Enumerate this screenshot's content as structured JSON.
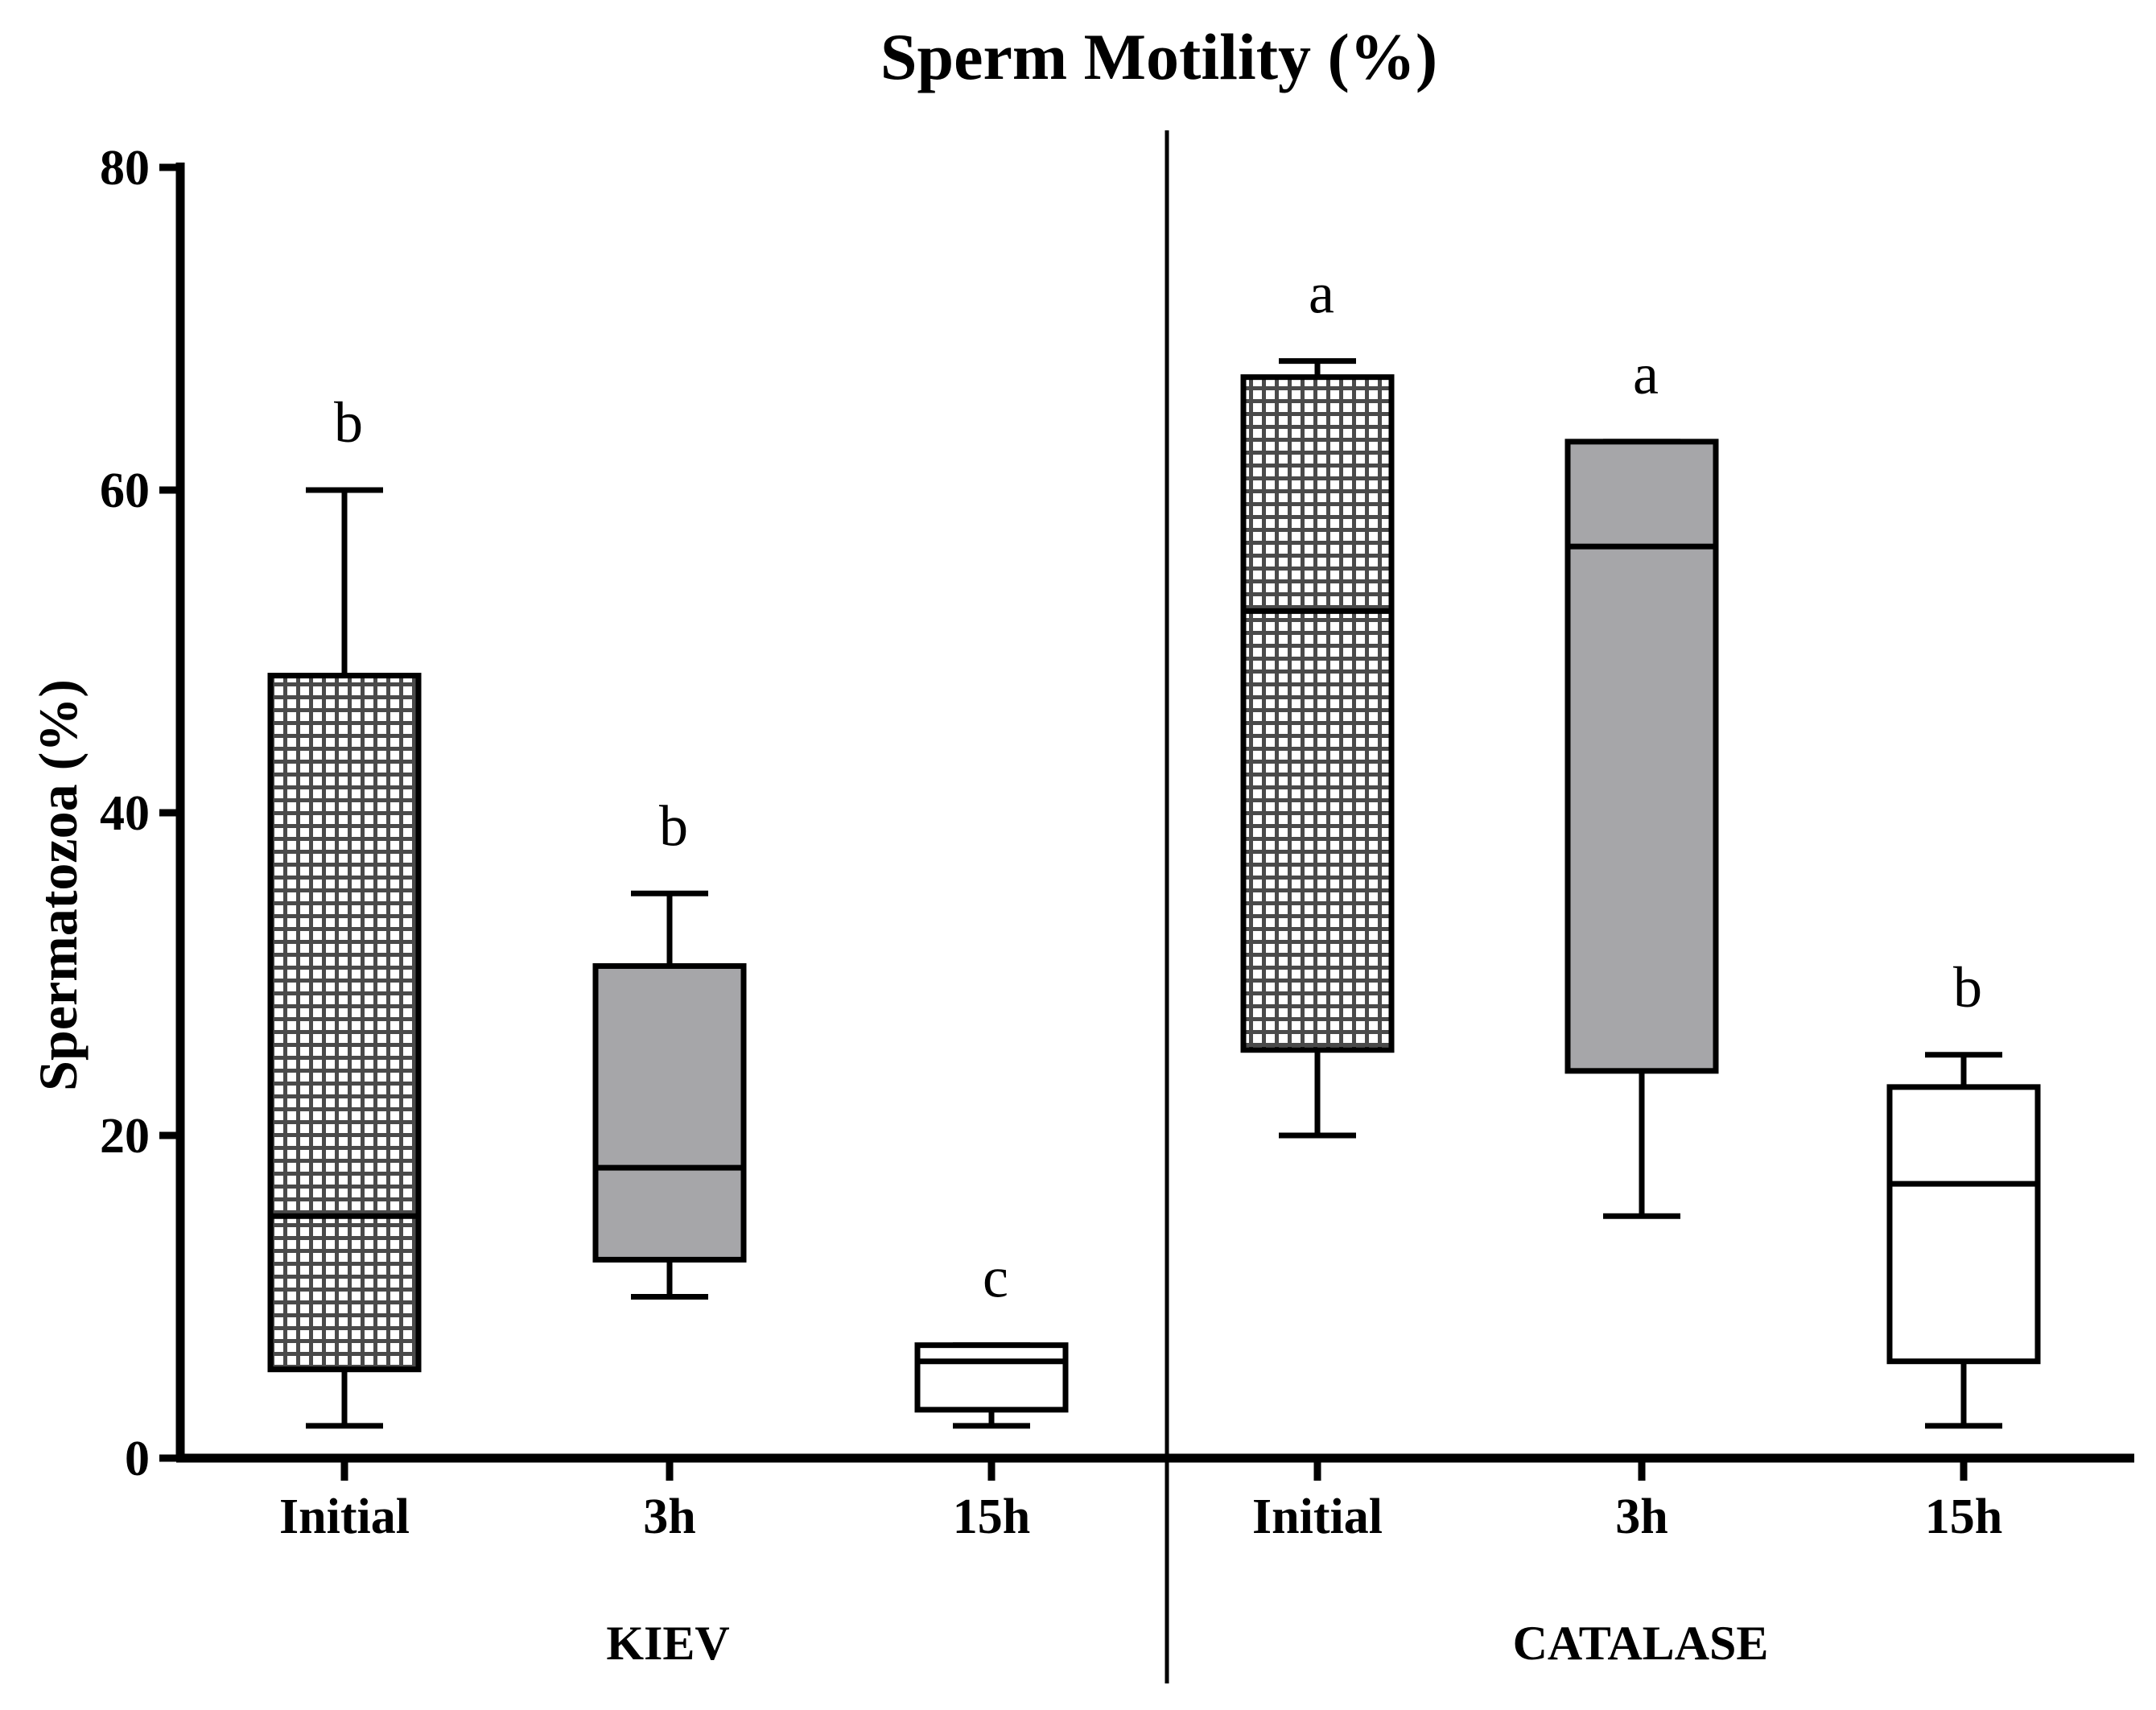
{
  "chart_data": {
    "type": "box",
    "title": "Sperm Motility (%)",
    "ylabel": "Spermatozoa (%)",
    "xlabel": "",
    "ylim": [
      0,
      80
    ],
    "yticks": [
      0,
      20,
      40,
      60,
      80
    ],
    "groups": [
      {
        "name": "KIEV",
        "boxes": [
          {
            "category": "Initial",
            "min": 2,
            "q1": 5.5,
            "median": 15,
            "q3": 48.5,
            "max": 60,
            "letter": "b",
            "fill": "grid"
          },
          {
            "category": "3h",
            "min": 10,
            "q1": 12.3,
            "median": 18,
            "q3": 30.5,
            "max": 35,
            "letter": "b",
            "fill": "gray"
          },
          {
            "category": "15h",
            "min": 2,
            "q1": 3,
            "median": 6,
            "q3": 7,
            "max": 7,
            "letter": "c",
            "fill": "white"
          }
        ]
      },
      {
        "name": "CATALASE",
        "boxes": [
          {
            "category": "Initial",
            "min": 20,
            "q1": 25.3,
            "median": 52.5,
            "q3": 67,
            "max": 68,
            "letter": "a",
            "fill": "grid"
          },
          {
            "category": "3h",
            "min": 15,
            "q1": 24,
            "median": 56.5,
            "q3": 63,
            "max": 63,
            "letter": "a",
            "fill": "gray"
          },
          {
            "category": "15h",
            "min": 2,
            "q1": 6,
            "median": 17,
            "q3": 23,
            "max": 25,
            "letter": "b",
            "fill": "white"
          }
        ]
      }
    ],
    "colors": {
      "gray": "#a6a6a9",
      "grid_bg": "#ffffff",
      "grid_line": "#4a4a4a",
      "stroke": "#000000"
    }
  }
}
